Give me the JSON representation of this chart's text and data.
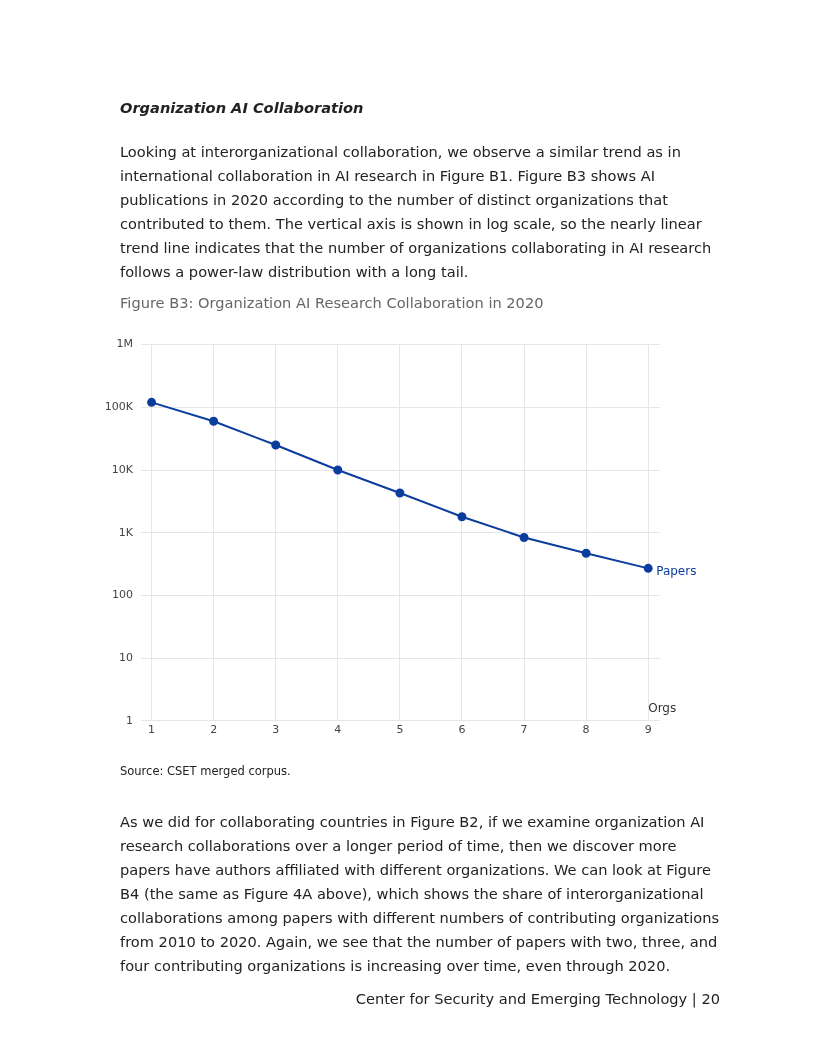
{
  "chart_data": {
    "type": "line",
    "title": "Figure B3: Organization AI Research Collaboration in 2020",
    "xlabel": "Orgs",
    "annotations": [
      "Organization AI Collaboration",
      "Looking at interorganizational collaboration, we observe a similar trend as in international collaboration in AI research in Figure B1. Figure B3 shows AI publications in 2020 according to the number of distinct organizations that contributed to them. The vertical axis is shown in log scale, so the nearly linear trend line indicates that the number of organizations collaborating in AI research follows a power-law distribution with a long tail.",
      "Source: CSET merged corpus.",
      "As we did for collaborating countries in Figure B2, if we examine organization AI research collaborations over a longer period of time, then we discover more papers have authors affiliated with different organizations. We can look at Figure B4 (the same as Figure 4A above), which shows the share of interorganizational collaborations among papers with different numbers of contributing organizations from 2010 to 2020. Again, we see that the number of papers with two, three, and four contributing organizations is increasing over time, even through 2020.",
      "Center for Security and Emerging Technology | 20"
    ],
    "x": [
      1,
      2,
      3,
      4,
      5,
      6,
      7,
      8,
      9
    ],
    "series": [
      {
        "name": "Papers",
        "color": "#0b3d9e",
        "values": [
          120000,
          60000,
          25000,
          10000,
          4300,
          1800,
          840,
          470,
          270
        ]
      }
    ],
    "xlim": [
      0.83,
      9.19
    ],
    "xticks": [
      1,
      2,
      3,
      4,
      5,
      6,
      7,
      8,
      9
    ],
    "ylim": [
      1,
      1000000
    ],
    "yticks": [
      1,
      10,
      100,
      {
        "value": 1000,
        "label": "1K"
      },
      {
        "value": 10000,
        "label": "10K"
      },
      {
        "value": 100000,
        "label": "100K"
      },
      {
        "value": 1000000,
        "label": "1M"
      }
    ],
    "log": "y",
    "grid": true,
    "marker": "circle",
    "line_style": "solid"
  }
}
